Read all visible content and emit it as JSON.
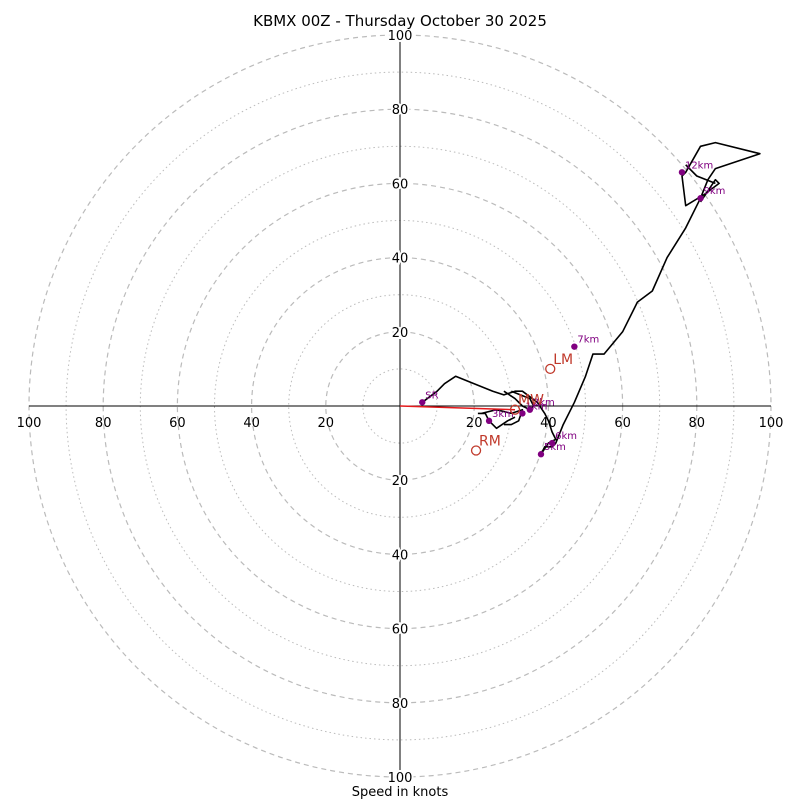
{
  "chart_data": {
    "type": "line",
    "title": "KBMX 00Z - Thursday October 30 2025",
    "xlabel": "Speed in knots",
    "ylabel": "",
    "xlim": [
      -100,
      100
    ],
    "ylim": [
      -100,
      100
    ],
    "rings": {
      "major": [
        20,
        40,
        60,
        80,
        100
      ],
      "minor": [
        10,
        30,
        50,
        70,
        90
      ]
    },
    "x_ticks": [
      {
        "value": -100,
        "label": "100"
      },
      {
        "value": -80,
        "label": "80"
      },
      {
        "value": -60,
        "label": "60"
      },
      {
        "value": -40,
        "label": "40"
      },
      {
        "value": -20,
        "label": "20"
      },
      {
        "value": 20,
        "label": "20"
      },
      {
        "value": 40,
        "label": "40"
      },
      {
        "value": 60,
        "label": "60"
      },
      {
        "value": 80,
        "label": "80"
      },
      {
        "value": 100,
        "label": "100"
      }
    ],
    "y_ticks": [
      {
        "value": 100,
        "label": "100"
      },
      {
        "value": 80,
        "label": "80"
      },
      {
        "value": 60,
        "label": "60"
      },
      {
        "value": 40,
        "label": "40"
      },
      {
        "value": 20,
        "label": "20"
      },
      {
        "value": -20,
        "label": "20"
      },
      {
        "value": -40,
        "label": "40"
      },
      {
        "value": -60,
        "label": "60"
      },
      {
        "value": -80,
        "label": "80"
      },
      {
        "value": -100,
        "label": "100"
      }
    ],
    "hodograph": {
      "name": "Hodograph",
      "color": "#000000",
      "x": [
        6,
        10,
        12,
        15,
        25,
        28,
        31,
        33,
        37,
        39,
        40,
        41,
        42,
        40,
        38,
        39,
        41,
        42,
        44,
        47,
        50,
        52,
        55,
        60,
        64,
        68,
        72,
        77,
        81,
        83,
        85,
        97,
        85,
        81,
        77,
        76,
        77,
        82,
        86,
        85,
        81
      ],
      "y": [
        1,
        4,
        6,
        8,
        4,
        3,
        4,
        4,
        1,
        -2,
        -4,
        -7,
        -9,
        -10,
        -13,
        -11,
        -11,
        -10,
        -5,
        1,
        8,
        14,
        14,
        20,
        28,
        31,
        40,
        48,
        56,
        61,
        64,
        68,
        71,
        70,
        63,
        62,
        54,
        57,
        60,
        61,
        55
      ]
    },
    "extra_segments": [
      {
        "color": "#000000",
        "x": [
          28,
          31,
          33,
          35,
          36,
          35,
          30
        ],
        "y": [
          4,
          2,
          0,
          -1,
          0,
          2,
          4
        ]
      },
      {
        "color": "#000000",
        "x": [
          22,
          26,
          30,
          33,
          32,
          30,
          28
        ],
        "y": [
          -2,
          -1,
          -2,
          -1,
          -4,
          -5,
          -5
        ]
      },
      {
        "color": "#000000",
        "x": [
          21,
          23,
          24,
          26,
          29,
          31
        ],
        "y": [
          -2,
          -2,
          -4,
          -6,
          -4,
          -3
        ]
      },
      {
        "color": "#000000",
        "x": [
          77,
          80,
          85
        ],
        "y": [
          65,
          62,
          60
        ]
      }
    ],
    "height_markers": [
      {
        "label": "SR",
        "x": 6,
        "y": 1
      },
      {
        "label": "1km",
        "x": 33,
        "y": -2
      },
      {
        "label": "2km",
        "x": 35,
        "y": -1
      },
      {
        "label": "3km",
        "x": 24,
        "y": -4
      },
      {
        "label": "5km",
        "x": 38,
        "y": -13
      },
      {
        "label": "6km",
        "x": 41,
        "y": -10
      },
      {
        "label": "7km",
        "x": 47,
        "y": 16
      },
      {
        "label": "9km",
        "x": 81,
        "y": 56
      },
      {
        "label": "12km",
        "x": 76,
        "y": 63
      }
    ],
    "storm_motion": [
      {
        "label": "RM",
        "x": 20.5,
        "y": -12
      },
      {
        "label": "LM",
        "x": 40.5,
        "y": 10
      },
      {
        "label": "MW",
        "x": 31,
        "y": -1
      }
    ],
    "shear_vector": {
      "color": "#e41a1c",
      "from": [
        0,
        0
      ],
      "to": [
        31,
        -1
      ]
    },
    "colors": {
      "hodograph": "#000000",
      "markers": "#800080",
      "motion": "#c0392b",
      "grid": "#bbbbbb"
    }
  }
}
